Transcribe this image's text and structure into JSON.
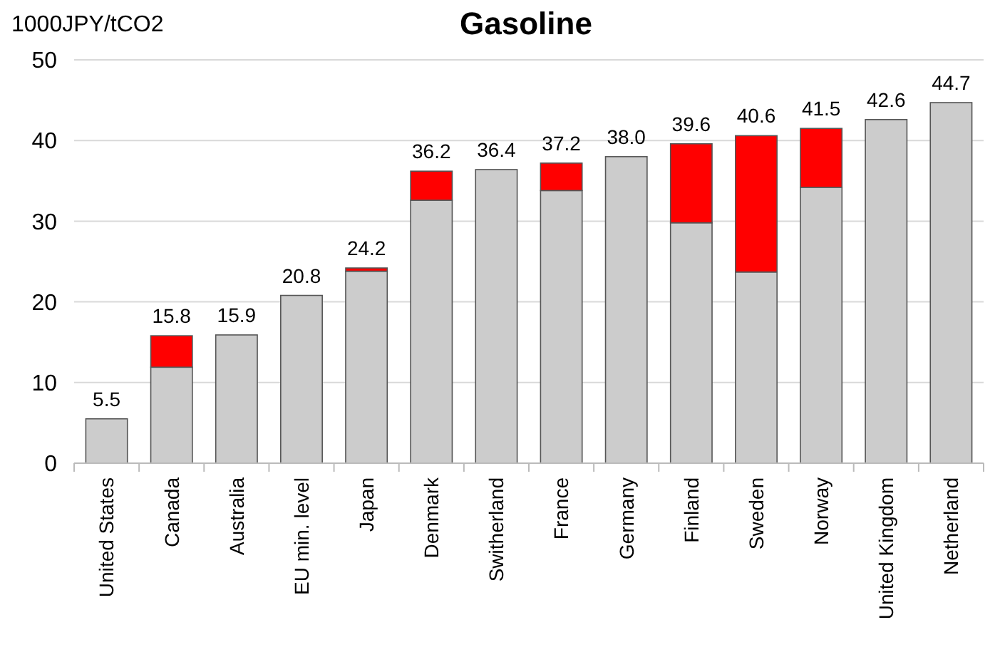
{
  "chart_data": {
    "type": "bar",
    "title": "Gasoline",
    "ylabel": "1000JPY/tCO2",
    "stacked": true,
    "categories": [
      "United States",
      "Canada",
      "Australia",
      "EU min. level",
      "Japan",
      "Denmark",
      "Switherland",
      "France",
      "Germany",
      "Finland",
      "Sweden",
      "Norway",
      "United Kingdom",
      "Netherland"
    ],
    "series": [
      {
        "color": "#cccccc",
        "values": [
          5.5,
          11.9,
          15.9,
          20.8,
          23.8,
          32.6,
          36.4,
          33.8,
          38.0,
          29.8,
          23.7,
          34.2,
          42.6,
          44.7
        ]
      },
      {
        "color": "#ff0000",
        "values": [
          null,
          3.9,
          null,
          null,
          0.4,
          3.6,
          null,
          3.4,
          null,
          9.8,
          16.9,
          7.3,
          null,
          null
        ]
      }
    ],
    "totals": [
      "5.5",
      "15.8",
      "15.9",
      "20.8",
      "24.2",
      "36.2",
      "36.4",
      "37.2",
      "38.0",
      "39.6",
      "40.6",
      "41.5",
      "42.6",
      "44.7"
    ],
    "ylim": [
      0,
      50
    ],
    "yticks": [
      0,
      10,
      20,
      30,
      40,
      50
    ],
    "grid": "y"
  }
}
